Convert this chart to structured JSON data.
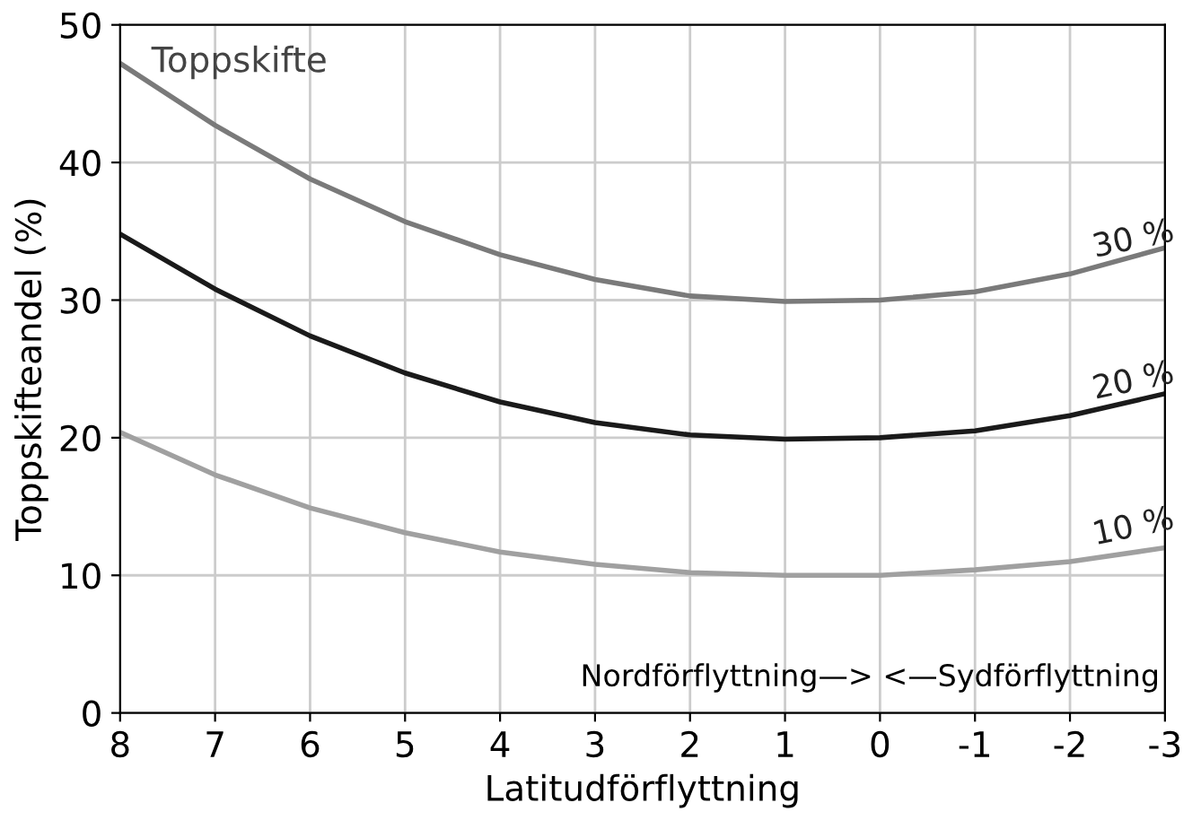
{
  "chart_data": {
    "type": "line",
    "xlabel": "Latitudförflyttning",
    "ylabel": "Toppskifteandel (%)",
    "x": [
      8,
      7,
      6,
      5,
      4,
      3,
      2,
      1,
      0,
      -1,
      -2,
      -3
    ],
    "series": [
      {
        "name": "30 %",
        "color": "#7a7a7a",
        "values": [
          47.2,
          42.7,
          38.8,
          35.7,
          33.3,
          31.5,
          30.3,
          29.9,
          30.0,
          30.6,
          31.9,
          33.8
        ]
      },
      {
        "name": "20 %",
        "color": "#1a1a1a",
        "values": [
          34.8,
          30.8,
          27.4,
          24.7,
          22.6,
          21.1,
          20.2,
          19.9,
          20.0,
          20.5,
          21.6,
          23.2
        ]
      },
      {
        "name": "10 %",
        "color": "#a0a0a0",
        "values": [
          20.4,
          17.3,
          14.9,
          13.1,
          11.7,
          10.8,
          10.2,
          10.0,
          10.0,
          10.4,
          11.0,
          12.0
        ]
      }
    ],
    "annotations": [
      "Toppskifte",
      "Nordförflyttning—> <—Sydförflyttning"
    ],
    "xlim": [
      8,
      -3
    ],
    "xticks": [
      8,
      7,
      6,
      5,
      4,
      3,
      2,
      1,
      0,
      -1,
      -2,
      -3
    ],
    "ylim": [
      0,
      50
    ],
    "yticks": [
      0,
      10,
      20,
      30,
      40,
      50
    ],
    "grid": true,
    "marker": "none",
    "line_style": "solid"
  }
}
